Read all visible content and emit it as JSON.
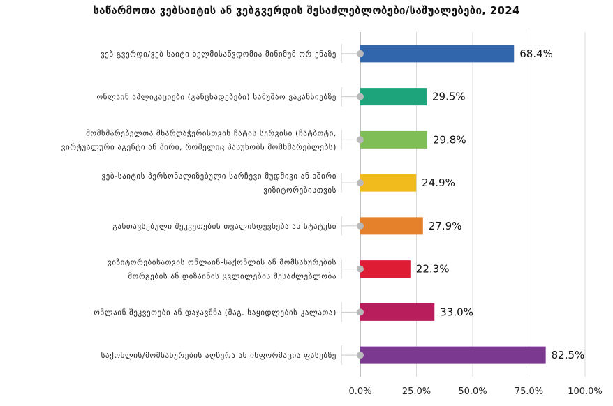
{
  "chart_data": {
    "type": "bar",
    "orientation": "horizontal",
    "title": "საწარმოთა ვებსაიტის ან ვებგვერდის შესაძლებლობები/საშუალებები, 2024",
    "xlabel": "",
    "ylabel": "",
    "xlim": [
      0,
      100
    ],
    "grid": true,
    "legend": "none",
    "xticks": [
      "0.0%",
      "25.0%",
      "50.0%",
      "75.0%",
      "100.0%"
    ],
    "xtick_values": [
      0,
      25,
      50,
      75,
      100
    ],
    "categories": [
      [
        "ვებ გვერდი/ვებ საიტი ხელმისაწვდომია მინიმუმ ორ ენაზე"
      ],
      [
        "ონლაინ აპლიკაციები (განცხადებები) სამუშაო ვაკანსიებზე"
      ],
      [
        "მომხმარებელთა მხარდაჭერისთვის ჩატის სერვისი (ჩატბოტი,",
        "ვირტუალური აგენტი ან პირი, რომელიც პასუხობს მომხმარებლებს)"
      ],
      [
        "ვებ-საიტის პერსონალიზებული სარჩევი მუდმივი ან ხშირი",
        "ვიზიტორებისთვის"
      ],
      [
        "განთავსებული შეკვეთების თვალისდევნება ან სტატუსი"
      ],
      [
        "ვიზიტორებისათვის ონლაინ-საქონლის ან მომსახურების",
        "მორგების ან დიზაინის ცვლილების შესაძლებლობა"
      ],
      [
        "ონლაინ შეკვეთები ან დაჯავშნა (მაგ. საყიდლების კალათა)"
      ],
      [
        "საქონლის/მომსახურების აღწერა ან ინფორმაცია ფასებზე"
      ]
    ],
    "values": [
      68.4,
      29.5,
      29.8,
      24.9,
      27.9,
      22.3,
      33.0,
      82.5
    ],
    "value_labels": [
      "68.4%",
      "29.5%",
      "29.8%",
      "24.9%",
      "27.9%",
      "22.3%",
      "33.0%",
      "82.5%"
    ],
    "colors": [
      "#3166ad",
      "#1ea47a",
      "#7fbe56",
      "#f2bb1d",
      "#e6812b",
      "#de1c33",
      "#b81d5c",
      "#7b3a8f"
    ]
  }
}
